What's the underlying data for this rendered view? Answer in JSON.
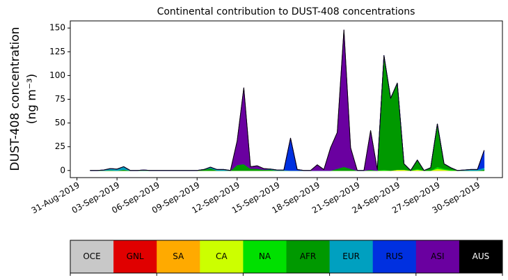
{
  "chart_data": {
    "type": "stacked_area",
    "title": "Continental contribution to DUST-408 concentrations",
    "y_label": [
      "DUST-408 concentration",
      "(ng m⁻³)"
    ],
    "x": [
      "2019-09-01T00:00",
      "2019-09-01T12:00",
      "2019-09-02T00:00",
      "2019-09-02T12:00",
      "2019-09-03T00:00",
      "2019-09-03T12:00",
      "2019-09-04T00:00",
      "2019-09-04T12:00",
      "2019-09-05T00:00",
      "2019-09-05T12:00",
      "2019-09-06T00:00",
      "2019-09-06T12:00",
      "2019-09-07T00:00",
      "2019-09-07T12:00",
      "2019-09-08T00:00",
      "2019-09-08T12:00",
      "2019-09-09T00:00",
      "2019-09-09T12:00",
      "2019-09-10T00:00",
      "2019-09-10T12:00",
      "2019-09-11T00:00",
      "2019-09-11T12:00",
      "2019-09-12T00:00",
      "2019-09-12T12:00",
      "2019-09-13T00:00",
      "2019-09-13T12:00",
      "2019-09-14T00:00",
      "2019-09-14T12:00",
      "2019-09-15T00:00",
      "2019-09-15T12:00",
      "2019-09-16T00:00",
      "2019-09-16T12:00",
      "2019-09-17T00:00",
      "2019-09-17T12:00",
      "2019-09-18T00:00",
      "2019-09-18T12:00",
      "2019-09-19T00:00",
      "2019-09-19T12:00",
      "2019-09-20T00:00",
      "2019-09-20T12:00",
      "2019-09-21T00:00",
      "2019-09-21T12:00",
      "2019-09-22T00:00",
      "2019-09-22T12:00",
      "2019-09-23T00:00",
      "2019-09-23T12:00",
      "2019-09-24T00:00",
      "2019-09-24T12:00",
      "2019-09-25T00:00",
      "2019-09-25T12:00",
      "2019-09-26T00:00",
      "2019-09-26T12:00",
      "2019-09-27T00:00",
      "2019-09-27T12:00",
      "2019-09-28T00:00",
      "2019-09-28T12:00",
      "2019-09-29T00:00",
      "2019-09-29T12:00",
      "2019-09-30T00:00",
      "2019-09-30T12:00"
    ],
    "xlim": [
      "2019-08-30T12:00",
      "2019-10-01T21:00"
    ],
    "xticks": [
      {
        "value": "2019-08-31T00:00",
        "label": "31-Aug-2019"
      },
      {
        "value": "2019-09-03T00:00",
        "label": "03-Sep-2019"
      },
      {
        "value": "2019-09-06T00:00",
        "label": "06-Sep-2019"
      },
      {
        "value": "2019-09-09T00:00",
        "label": "09-Sep-2019"
      },
      {
        "value": "2019-09-12T00:00",
        "label": "12-Sep-2019"
      },
      {
        "value": "2019-09-15T00:00",
        "label": "15-Sep-2019"
      },
      {
        "value": "2019-09-18T00:00",
        "label": "18-Sep-2019"
      },
      {
        "value": "2019-09-21T00:00",
        "label": "21-Sep-2019"
      },
      {
        "value": "2019-09-24T00:00",
        "label": "24-Sep-2019"
      },
      {
        "value": "2019-09-27T00:00",
        "label": "27-Sep-2019"
      },
      {
        "value": "2019-09-30T00:00",
        "label": "30-Sep-2019"
      }
    ],
    "ylim": [
      -7.5,
      157.5
    ],
    "yticks": [
      0,
      25,
      50,
      75,
      100,
      125,
      150
    ],
    "series": [
      {
        "name": "OCE",
        "color": "#c8c8c8",
        "values": [
          0,
          0,
          0,
          0,
          0,
          0,
          0,
          0,
          0,
          0,
          0,
          0,
          0,
          0,
          0,
          0,
          0,
          0,
          0,
          0,
          0,
          0,
          0,
          0,
          0,
          0,
          0,
          0,
          0,
          0,
          0,
          0,
          0,
          0,
          0,
          0,
          0,
          0,
          0,
          0,
          0,
          0,
          0,
          0,
          0,
          0,
          0,
          0,
          0,
          0,
          0,
          0,
          0,
          0,
          0,
          0,
          0,
          0,
          0,
          0
        ]
      },
      {
        "name": "GNL",
        "color": "#e00000",
        "values": [
          0,
          0,
          0,
          0,
          0,
          0,
          0,
          0,
          0,
          0,
          0,
          0,
          0,
          0,
          0,
          0,
          0,
          0,
          0,
          0,
          0,
          0,
          0,
          0,
          0,
          0,
          0,
          0,
          0,
          0,
          0,
          0,
          0,
          0,
          0,
          0,
          0,
          0,
          0,
          0,
          0,
          0,
          0,
          0,
          0,
          0,
          0,
          0,
          0,
          0,
          0,
          0,
          0,
          0,
          0,
          0,
          0,
          0,
          0,
          0
        ]
      },
      {
        "name": "SA",
        "color": "#ffaa00",
        "values": [
          0,
          0,
          0,
          0,
          0,
          0,
          0,
          0,
          0,
          0,
          0,
          0,
          0,
          0,
          0,
          0,
          0,
          0,
          0,
          0,
          0,
          0,
          0,
          0,
          0,
          0,
          0,
          0,
          0,
          0,
          0,
          0,
          0,
          0,
          0,
          0,
          0,
          0,
          0,
          0,
          0,
          0,
          0,
          0,
          0,
          0,
          0,
          0,
          0,
          0,
          0,
          0,
          0,
          0,
          0,
          0,
          0,
          0,
          0,
          0
        ]
      },
      {
        "name": "CA",
        "color": "#ccff00",
        "values": [
          0,
          0,
          0,
          0,
          0,
          0,
          0,
          0,
          0,
          0,
          0,
          0,
          0,
          0,
          0,
          0,
          0,
          0,
          0,
          0,
          0,
          0,
          0,
          0,
          0,
          0,
          0,
          0,
          0,
          0,
          0,
          0,
          0,
          0,
          0,
          0,
          0,
          0,
          0,
          0,
          0,
          0,
          0,
          0,
          0,
          0,
          1,
          1,
          0,
          1,
          0,
          0,
          2,
          1,
          0,
          0,
          0,
          0,
          0,
          0
        ]
      },
      {
        "name": "NA",
        "color": "#00e000",
        "values": [
          0,
          0,
          0,
          0,
          0,
          0,
          0,
          0,
          0,
          0,
          0,
          0,
          0,
          0,
          0,
          0,
          0,
          0,
          0,
          0,
          0,
          0,
          0,
          0,
          0,
          0,
          0,
          0,
          0,
          0,
          0,
          0,
          0,
          0,
          0,
          0,
          0,
          0,
          0,
          0,
          0,
          0,
          0,
          0,
          1,
          0,
          0,
          0,
          0,
          1,
          0,
          0,
          2,
          1,
          1,
          0,
          0,
          0,
          0,
          0
        ]
      },
      {
        "name": "AFR",
        "color": "#009900",
        "values": [
          0,
          0,
          0,
          0.5,
          0,
          1,
          0,
          0,
          0,
          0,
          0,
          0,
          0,
          0,
          0,
          0,
          0,
          1,
          2.5,
          0,
          0,
          0,
          6,
          7,
          2,
          2,
          1,
          1,
          0,
          0,
          0,
          0,
          0,
          0,
          0,
          0,
          0,
          2,
          4,
          2,
          0,
          0,
          1,
          0,
          120,
          76,
          91,
          6,
          0,
          9,
          0,
          3,
          45,
          5,
          2,
          0,
          0,
          0,
          0,
          1
        ]
      },
      {
        "name": "EUR",
        "color": "#00a0c0",
        "values": [
          0,
          0,
          0.5,
          1.5,
          1.5,
          3,
          0,
          0,
          0.5,
          0,
          0,
          0,
          0,
          0,
          0,
          0,
          0,
          0,
          1,
          1,
          1,
          0,
          0,
          0,
          0,
          0,
          0,
          0.5,
          0.5,
          0.5,
          0,
          0,
          0,
          0,
          0,
          0,
          0,
          0,
          0,
          0,
          0,
          0,
          0,
          0,
          0,
          0,
          0,
          0,
          0,
          0,
          0,
          0,
          0,
          0,
          0,
          0,
          0.5,
          1,
          1,
          2
        ]
      },
      {
        "name": "RUS",
        "color": "#0030e0",
        "values": [
          0,
          0,
          0,
          0,
          0,
          0,
          0,
          0,
          0,
          0,
          0,
          0,
          0,
          0,
          0,
          0,
          0,
          0,
          0,
          0,
          0,
          0,
          0,
          0,
          0,
          0,
          0,
          0,
          0,
          0,
          34,
          1,
          0,
          0,
          0,
          0,
          0,
          0,
          0,
          0,
          0,
          0,
          0,
          0,
          0,
          0,
          0,
          0,
          0,
          0,
          0,
          0,
          0,
          0,
          0,
          0,
          0,
          0,
          0,
          18
        ]
      },
      {
        "name": "ASI",
        "color": "#6a00a0",
        "values": [
          0,
          0,
          0,
          0,
          0,
          0,
          0,
          0,
          0,
          0,
          0,
          0,
          0,
          0,
          0,
          0,
          0,
          0,
          0,
          0,
          0,
          0,
          25,
          80,
          2,
          3,
          1,
          0,
          0,
          0,
          0,
          0,
          0,
          0,
          6,
          1,
          24,
          38,
          144,
          22,
          0,
          0,
          41,
          1,
          0,
          0,
          0,
          0,
          0,
          0,
          0,
          0,
          0,
          0,
          0,
          0,
          0,
          0,
          0,
          0
        ]
      },
      {
        "name": "AUS",
        "color": "#000000",
        "values": [
          0,
          0,
          0,
          0,
          0,
          0,
          0,
          0,
          0,
          0,
          0,
          0,
          0,
          0,
          0,
          0,
          0,
          0,
          0,
          0,
          0,
          0,
          0,
          0,
          0,
          0,
          0,
          0,
          0,
          0,
          0,
          0,
          0,
          0,
          0,
          0,
          0,
          0,
          0,
          0,
          0,
          0,
          0,
          0,
          0,
          0,
          0,
          0,
          0,
          0,
          0,
          0,
          0,
          0,
          0,
          0,
          0,
          0,
          0,
          0
        ]
      }
    ]
  }
}
